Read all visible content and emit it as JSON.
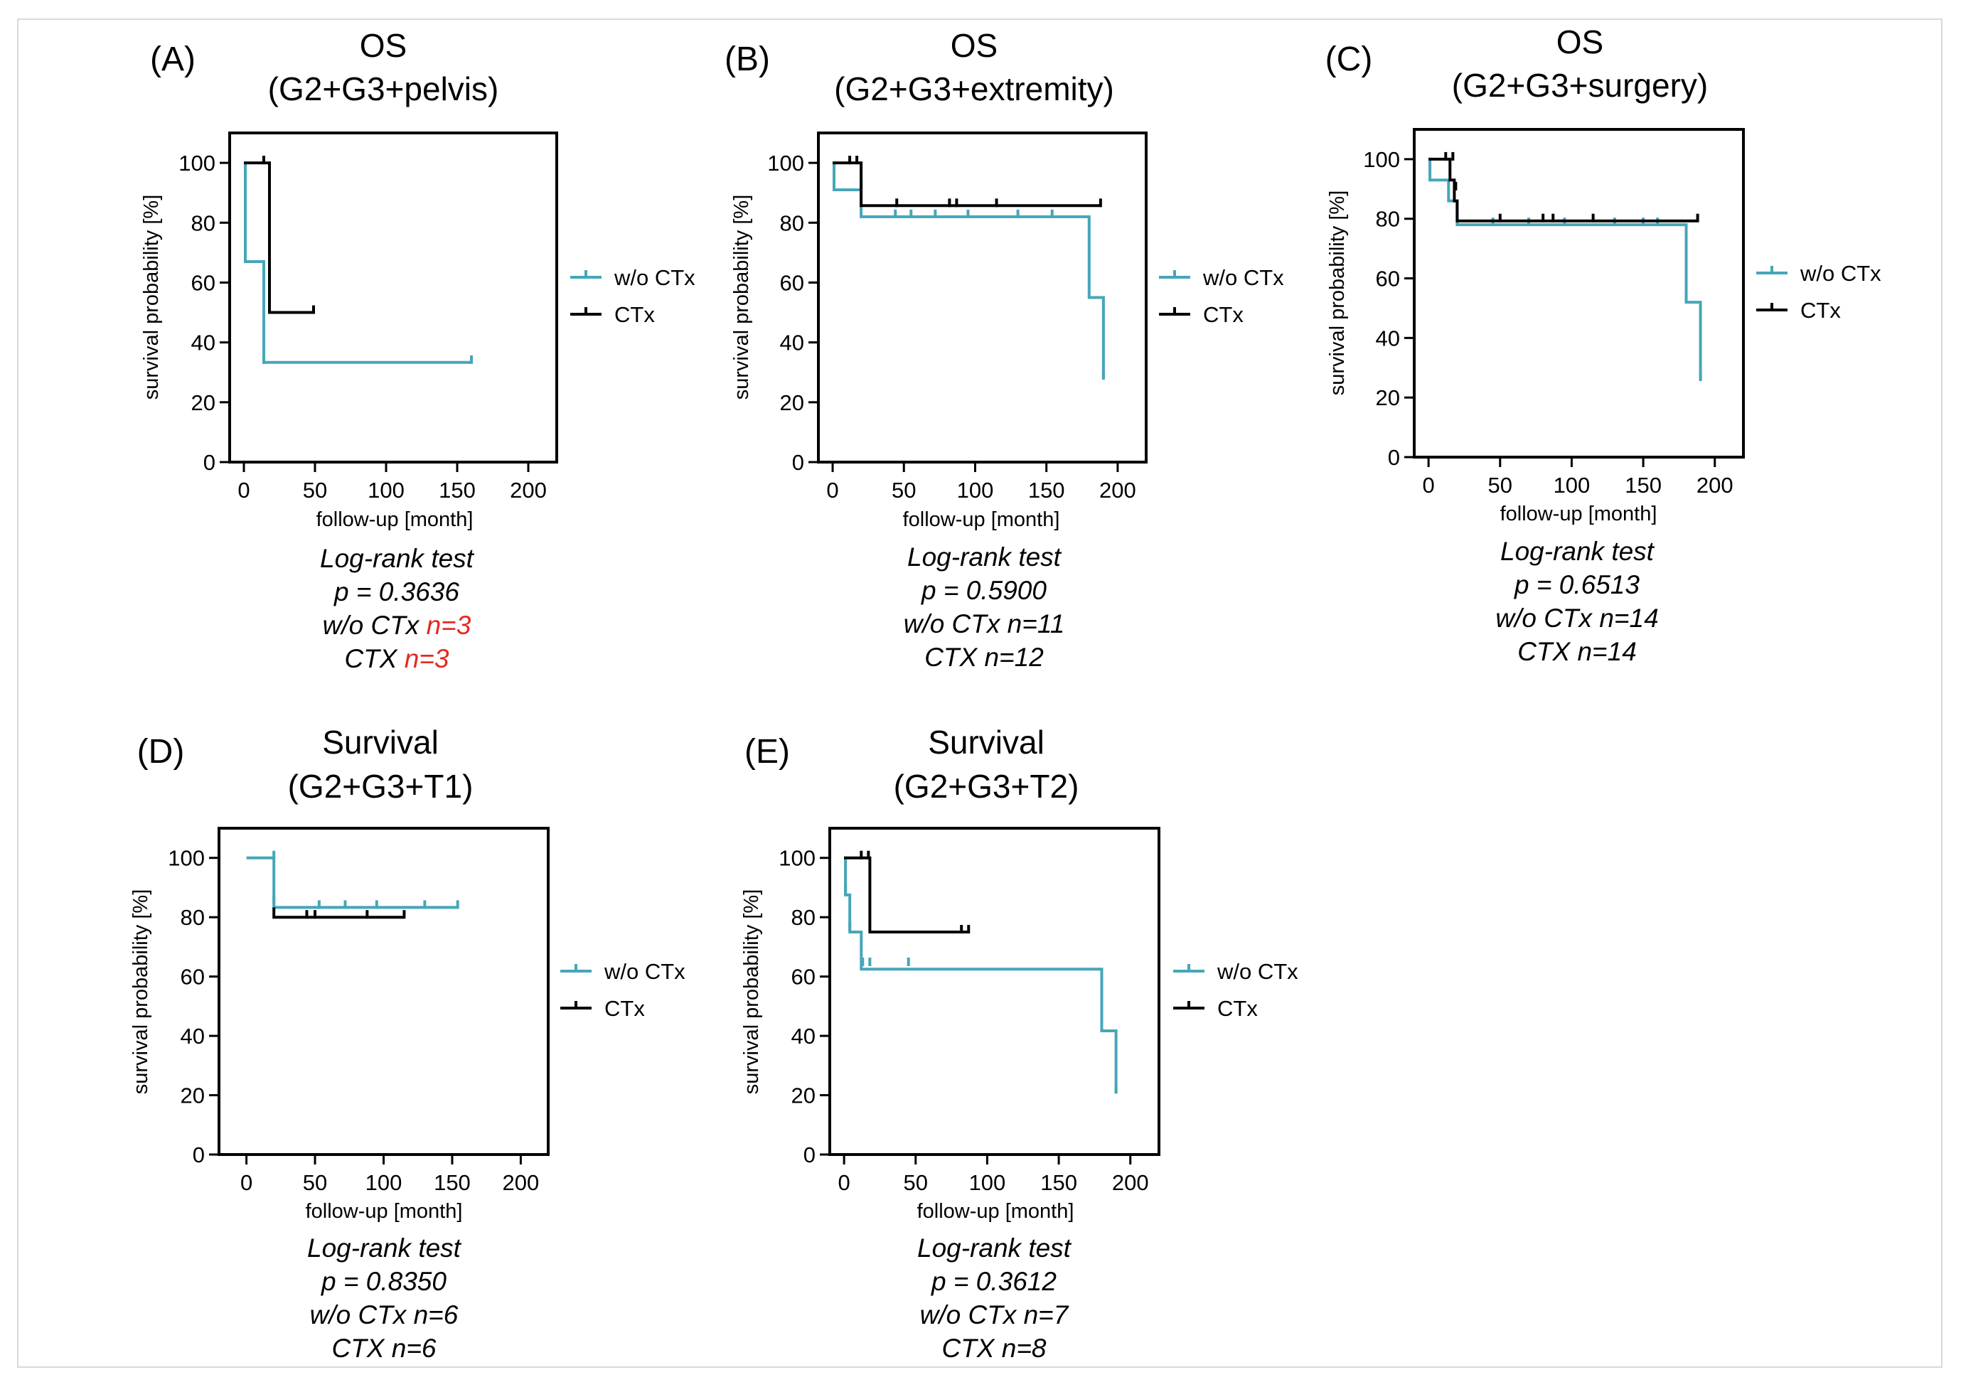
{
  "colors": {
    "wo_ctx": "#45a6b8",
    "ctx": "#000000",
    "highlight": "#e5291f"
  },
  "chart_data": [
    {
      "type": "line",
      "panel_label": "(A)",
      "title": "OS",
      "subtitle": "(G2+G3+pelvis)",
      "xlabel": "follow-up [month]",
      "ylabel": "survival probability [%]",
      "xticks": [
        "0",
        "50",
        "100",
        "150",
        "200"
      ],
      "yticks": [
        "0",
        "20",
        "40",
        "60",
        "80",
        "100"
      ],
      "xlim": [
        -10,
        220
      ],
      "ylim": [
        0,
        110
      ],
      "legend": [
        "w/o CTx",
        "CTx"
      ],
      "series": [
        {
          "name": "w/o CTx",
          "color": "#45a6b8",
          "x": [
            0,
            1,
            1,
            14,
            14,
            160
          ],
          "y": [
            100,
            100,
            67,
            67,
            33.3,
            33.3
          ],
          "censors": [
            [
              1,
              67
            ],
            [
              14,
              33.3
            ],
            [
              160,
              33.3
            ]
          ]
        },
        {
          "name": "CTx",
          "color": "#000000",
          "x": [
            0,
            18,
            18,
            49
          ],
          "y": [
            100,
            100,
            50,
            50
          ],
          "censors": [
            [
              14,
              100
            ],
            [
              49,
              50
            ]
          ]
        }
      ],
      "stats": {
        "test": "Log-rank test",
        "p": "p = 0.3636",
        "wo_label": "w/o  CTx ",
        "wo_n": "n=3",
        "ctx_label": "CTX ",
        "ctx_n": "n=3",
        "n_highlight": true
      }
    },
    {
      "type": "line",
      "panel_label": "(B)",
      "title": "OS",
      "subtitle": "(G2+G3+extremity)",
      "xlabel": "follow-up [month]",
      "ylabel": "survival probability [%]",
      "xticks": [
        "0",
        "50",
        "100",
        "150",
        "200"
      ],
      "yticks": [
        "0",
        "20",
        "40",
        "60",
        "80",
        "100"
      ],
      "xlim": [
        -10,
        220
      ],
      "ylim": [
        0,
        110
      ],
      "legend": [
        "w/o CTx",
        "CTx"
      ],
      "series": [
        {
          "name": "w/o CTx",
          "color": "#45a6b8",
          "x": [
            0,
            1,
            1,
            20,
            20,
            180,
            180,
            190,
            190
          ],
          "y": [
            100,
            100,
            91,
            91,
            82,
            82,
            55,
            55,
            28
          ],
          "censors": [
            [
              44,
              82
            ],
            [
              55,
              82
            ],
            [
              72,
              82
            ],
            [
              95,
              82
            ],
            [
              130,
              82
            ],
            [
              154,
              82
            ],
            [
              190,
              28
            ]
          ]
        },
        {
          "name": "CTx",
          "color": "#000000",
          "x": [
            0,
            20,
            20,
            188
          ],
          "y": [
            100,
            100,
            85.7,
            85.7
          ],
          "censors": [
            [
              12,
              100
            ],
            [
              17,
              100
            ],
            [
              20,
              92
            ],
            [
              45,
              85.7
            ],
            [
              82,
              85.7
            ],
            [
              87,
              85.7
            ],
            [
              115,
              85.7
            ],
            [
              188,
              85.7
            ]
          ]
        }
      ],
      "stats": {
        "test": "Log-rank test",
        "p": "p = 0.5900",
        "wo_label": "w/o  CTx ",
        "wo_n": "n=11",
        "ctx_label": "CTX ",
        "ctx_n": "n=12",
        "n_highlight": false
      }
    },
    {
      "type": "line",
      "panel_label": "(C)",
      "title": "OS",
      "subtitle": "(G2+G3+surgery)",
      "xlabel": "follow-up [month]",
      "ylabel": "survival probability [%]",
      "xticks": [
        "0",
        "50",
        "100",
        "150",
        "200"
      ],
      "yticks": [
        "0",
        "20",
        "40",
        "60",
        "80",
        "100"
      ],
      "xlim": [
        -10,
        220
      ],
      "ylim": [
        0,
        110
      ],
      "legend": [
        "w/o CTx",
        "CTx"
      ],
      "series": [
        {
          "name": "w/o CTx",
          "color": "#45a6b8",
          "x": [
            0,
            1,
            1,
            14,
            14,
            20,
            20,
            180,
            180,
            190,
            190
          ],
          "y": [
            100,
            100,
            93,
            93,
            86,
            86,
            78,
            78,
            52,
            52,
            26
          ],
          "censors": [
            [
              45,
              78
            ],
            [
              70,
              78
            ],
            [
              95,
              78
            ],
            [
              130,
              78
            ],
            [
              150,
              78
            ],
            [
              160,
              78
            ],
            [
              190,
              26
            ]
          ]
        },
        {
          "name": "CTx",
          "color": "#000000",
          "x": [
            0,
            15,
            15,
            18,
            18,
            20,
            20,
            188
          ],
          "y": [
            100,
            100,
            93,
            93,
            86,
            86,
            79.3,
            79.3
          ],
          "censors": [
            [
              12,
              100
            ],
            [
              17,
              100
            ],
            [
              19,
              90
            ],
            [
              50,
              79.3
            ],
            [
              80,
              79.3
            ],
            [
              87,
              79.3
            ],
            [
              115,
              79.3
            ],
            [
              188,
              79.3
            ]
          ]
        }
      ],
      "stats": {
        "test": "Log-rank test",
        "p": "p = 0.6513",
        "wo_label": "w/o  CTx ",
        "wo_n": "n=14",
        "ctx_label": "CTX ",
        "ctx_n": "n=14",
        "n_highlight": false
      }
    },
    {
      "type": "line",
      "panel_label": "(D)",
      "title": "Survival",
      "subtitle": "(G2+G3+T1)",
      "xlabel": "follow-up [month]",
      "ylabel": "survival probability [%]",
      "xticks": [
        "0",
        "50",
        "100",
        "150",
        "200"
      ],
      "yticks": [
        "0",
        "20",
        "40",
        "60",
        "80",
        "100"
      ],
      "xlim": [
        -20,
        220
      ],
      "ylim": [
        0,
        110
      ],
      "legend": [
        "w/o CTx",
        "CTx"
      ],
      "series": [
        {
          "name": "w/o CTx",
          "color": "#45a6b8",
          "x": [
            0,
            20,
            20,
            154
          ],
          "y": [
            100,
            100,
            83.3,
            83.3
          ],
          "censors": [
            [
              20,
              100
            ],
            [
              20,
              85
            ],
            [
              53,
              83.3
            ],
            [
              72,
              83.3
            ],
            [
              95,
              83.3
            ],
            [
              130,
              83.3
            ],
            [
              154,
              83.3
            ]
          ]
        },
        {
          "name": "CTx",
          "color": "#000000",
          "x": [
            20,
            20,
            115
          ],
          "y": [
            83.3,
            80,
            80
          ],
          "censors": [
            [
              44,
              80
            ],
            [
              50,
              80
            ],
            [
              88,
              80
            ],
            [
              115,
              80
            ]
          ]
        }
      ],
      "stats": {
        "test": "Log-rank test",
        "p": "p = 0.8350",
        "wo_label": "w/o  CTx ",
        "wo_n": "n=6",
        "ctx_label": "CTX ",
        "ctx_n": "n=6",
        "n_highlight": false
      }
    },
    {
      "type": "line",
      "panel_label": "(E)",
      "title": "Survival",
      "subtitle": "(G2+G3+T2)",
      "xlabel": "follow-up [month]",
      "ylabel": "survival probability [%]",
      "xticks": [
        "0",
        "50",
        "100",
        "150",
        "200"
      ],
      "yticks": [
        "0",
        "20",
        "40",
        "60",
        "80",
        "100"
      ],
      "xlim": [
        -10,
        220
      ],
      "ylim": [
        0,
        110
      ],
      "legend": [
        "w/o CTx",
        "CTx"
      ],
      "series": [
        {
          "name": "w/o CTx",
          "color": "#45a6b8",
          "x": [
            0,
            1,
            1,
            4,
            4,
            12,
            12,
            180,
            180,
            190,
            190
          ],
          "y": [
            100,
            100,
            87.5,
            87.5,
            75,
            75,
            62.5,
            62.5,
            41.7,
            41.7,
            20.8
          ],
          "censors": [
            [
              1,
              88
            ],
            [
              4,
              76
            ],
            [
              13,
              64
            ],
            [
              18,
              64
            ],
            [
              45,
              64
            ],
            [
              180,
              42
            ],
            [
              190,
              21
            ]
          ]
        },
        {
          "name": "CTx",
          "color": "#000000",
          "x": [
            0,
            18,
            18,
            87
          ],
          "y": [
            100,
            100,
            75,
            75
          ],
          "censors": [
            [
              12,
              100
            ],
            [
              17,
              100
            ],
            [
              82,
              75
            ],
            [
              87,
              75
            ]
          ]
        }
      ],
      "stats": {
        "test": "Log-rank test",
        "p": "p = 0.3612",
        "wo_label": "w/o  CTx ",
        "wo_n": "n=7",
        "ctx_label": "CTX ",
        "ctx_n": "n=8",
        "n_highlight": false
      }
    }
  ]
}
